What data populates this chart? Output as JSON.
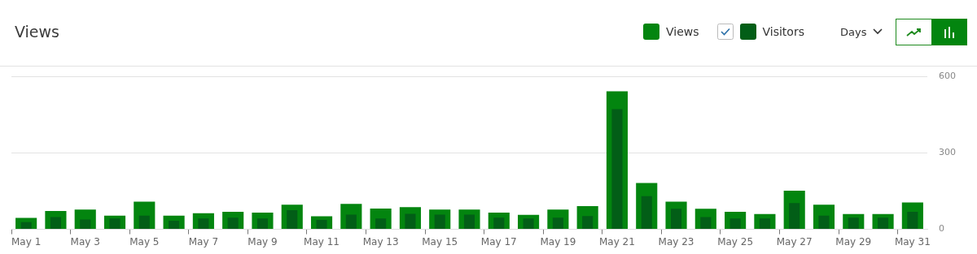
{
  "chart_data": {
    "type": "bar",
    "title": "Views",
    "categories": [
      "May 1",
      null,
      "May 3",
      null,
      "May 5",
      null,
      "May 7",
      null,
      "May 9",
      null,
      "May 11",
      null,
      "May 13",
      null,
      "May 15",
      null,
      "May 17",
      null,
      "May 19",
      null,
      "May 21",
      null,
      "May 23",
      null,
      "May 25",
      null,
      "May 27",
      null,
      "May 29",
      null,
      "May 31"
    ],
    "series": [
      {
        "name": "Views",
        "color": "#03850f",
        "values": [
          45,
          72,
          78,
          54,
          109,
          54,
          63,
          69,
          66,
          97,
          51,
          100,
          82,
          87,
          78,
          78,
          66,
          57,
          78,
          91,
          543,
          182,
          109,
          81,
          69,
          60,
          152,
          97,
          60,
          60,
          106
        ]
      },
      {
        "name": "Visitors",
        "color": "#025e17",
        "values": [
          28,
          48,
          39,
          43,
          54,
          34,
          43,
          46,
          43,
          75,
          37,
          58,
          43,
          61,
          58,
          58,
          46,
          43,
          46,
          52,
          473,
          130,
          81,
          48,
          43,
          43,
          103,
          54,
          46,
          46,
          69
        ]
      }
    ],
    "ylim": [
      0,
      600
    ],
    "yticks": [
      0,
      300,
      600
    ],
    "grid": "y",
    "legend": "top right",
    "annotations": [
      "Days"
    ]
  }
}
